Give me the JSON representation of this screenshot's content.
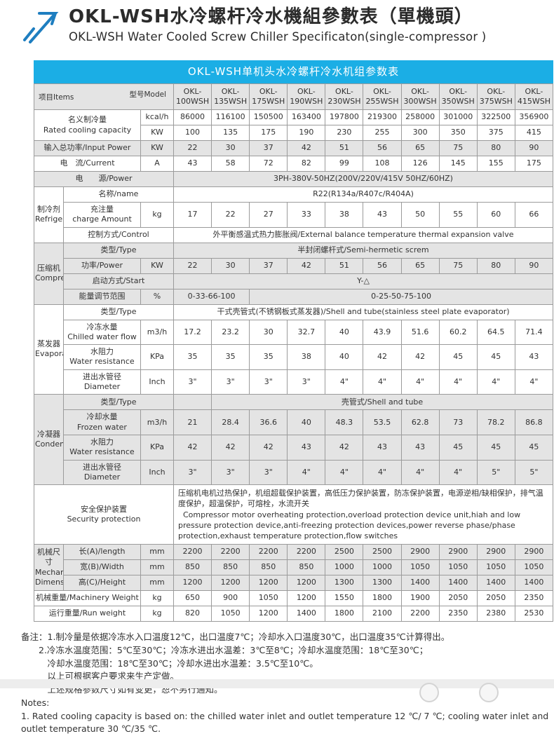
{
  "colors": {
    "accent": "#1baee5",
    "arrow_blue": "#1e7ec0",
    "row_gray": "#e4e4e4"
  },
  "page": {
    "title_zh": "OKL-WSH水冷螺杆冷水機組參數表（單機頭）",
    "title_en": "OKL-WSH Water Cooled Screw Chiller Specificaton(single-compressor )"
  },
  "table": {
    "caption": "OKL-WSH单机头水冷螺杆冷水机组参数表",
    "corner": {
      "items": "项目Items",
      "model": "型号Model"
    },
    "rows": [
      {
        "bg": "g",
        "cells": [
          {
            "type": "diag",
            "cs": 3
          },
          {
            "t": "OKL-\n100WSH",
            "n": "model-header"
          },
          {
            "t": "OKL-\n135WSH",
            "n": "model-header"
          },
          {
            "t": "OKL-\n175WSH",
            "n": "model-header"
          },
          {
            "t": "OKL-\n190WSH",
            "n": "model-header"
          },
          {
            "t": "OKL-\n230WSH",
            "n": "model-header"
          },
          {
            "t": "OKL-\n255WSH",
            "n": "model-header"
          },
          {
            "t": "OKL-\n300WSH",
            "n": "model-header"
          },
          {
            "t": "OKL-\n350WSH",
            "n": "model-header"
          },
          {
            "t": "OKL-\n375WSH",
            "n": "model-header"
          },
          {
            "t": "OKL-\n415WSH",
            "n": "model-header"
          }
        ]
      },
      {
        "cells": [
          {
            "t": "名义制冷量\nRated cooling capacity",
            "cs": 2,
            "rs": 2,
            "n": "row-label"
          },
          {
            "t": "kcal/h",
            "n": "unit"
          },
          {
            "t": "86000"
          },
          {
            "t": "116100"
          },
          {
            "t": "150500"
          },
          {
            "t": "163400"
          },
          {
            "t": "197800"
          },
          {
            "t": "219300"
          },
          {
            "t": "258000"
          },
          {
            "t": "301000"
          },
          {
            "t": "322500"
          },
          {
            "t": "356900"
          }
        ]
      },
      {
        "cells": [
          {
            "t": "KW",
            "n": "unit"
          },
          {
            "t": "100"
          },
          {
            "t": "135"
          },
          {
            "t": "175"
          },
          {
            "t": "190"
          },
          {
            "t": "230"
          },
          {
            "t": "255"
          },
          {
            "t": "300"
          },
          {
            "t": "350"
          },
          {
            "t": "375"
          },
          {
            "t": "415"
          }
        ]
      },
      {
        "bg": "g",
        "cells": [
          {
            "t": "输入总功率/Input Power",
            "cs": 2,
            "n": "row-label"
          },
          {
            "t": "KW",
            "n": "unit"
          },
          {
            "t": "22"
          },
          {
            "t": "30"
          },
          {
            "t": "37"
          },
          {
            "t": "42"
          },
          {
            "t": "51"
          },
          {
            "t": "56"
          },
          {
            "t": "65"
          },
          {
            "t": "75"
          },
          {
            "t": "80"
          },
          {
            "t": "90"
          }
        ]
      },
      {
        "cells": [
          {
            "t": "电　流/Current",
            "cs": 2,
            "n": "row-label"
          },
          {
            "t": "A",
            "n": "unit"
          },
          {
            "t": "43"
          },
          {
            "t": "58"
          },
          {
            "t": "72"
          },
          {
            "t": "82"
          },
          {
            "t": "99"
          },
          {
            "t": "108"
          },
          {
            "t": "126"
          },
          {
            "t": "145"
          },
          {
            "t": "155"
          },
          {
            "t": "175"
          }
        ]
      },
      {
        "bg": "g",
        "cells": [
          {
            "t": "电　　源/Power",
            "cs": 3,
            "n": "row-label"
          },
          {
            "t": "3PH-380V-50HZ(200V/220V/415V  50HZ/60HZ)",
            "cs": 10,
            "n": "merged-value"
          }
        ]
      },
      {
        "cells": [
          {
            "t": "制冷剂\nRefrigerant",
            "rs": 3,
            "n": "group-label"
          },
          {
            "t": "名称/name",
            "cs": 2,
            "n": "row-label"
          },
          {
            "t": "R22(R134a/R407c/R404A)",
            "cs": 10,
            "n": "merged-value"
          }
        ]
      },
      {
        "cells": [
          {
            "t": "充注量\ncharge Amount",
            "n": "row-label"
          },
          {
            "t": "kg",
            "n": "unit"
          },
          {
            "t": "17"
          },
          {
            "t": "22"
          },
          {
            "t": "27"
          },
          {
            "t": "33"
          },
          {
            "t": "38"
          },
          {
            "t": "43"
          },
          {
            "t": "50"
          },
          {
            "t": "55"
          },
          {
            "t": "60"
          },
          {
            "t": "66"
          }
        ]
      },
      {
        "cells": [
          {
            "t": "控制方式/Control",
            "cs": 2,
            "n": "row-label"
          },
          {
            "t": "外平衡感温式热力膨胀阀/External balance temperature thermal expansion valve",
            "cs": 10,
            "n": "merged-value"
          }
        ]
      },
      {
        "bg": "g",
        "cells": [
          {
            "t": "压缩机\nCompressor",
            "rs": 4,
            "n": "group-label"
          },
          {
            "t": "类型/Type",
            "cs": 2,
            "n": "row-label"
          },
          {
            "t": "半封闭螺杆式/Semi-hermetic screm",
            "cs": 10,
            "n": "merged-value"
          }
        ]
      },
      {
        "bg": "g",
        "cells": [
          {
            "t": "功率/Power",
            "n": "row-label"
          },
          {
            "t": "KW",
            "n": "unit"
          },
          {
            "t": "22"
          },
          {
            "t": "30"
          },
          {
            "t": "37"
          },
          {
            "t": "42"
          },
          {
            "t": "51"
          },
          {
            "t": "56"
          },
          {
            "t": "65"
          },
          {
            "t": "75"
          },
          {
            "t": "80"
          },
          {
            "t": "90"
          }
        ]
      },
      {
        "bg": "g",
        "cells": [
          {
            "t": "启动方式/Start",
            "cs": 2,
            "n": "row-label"
          },
          {
            "t": "Y-△",
            "cs": 10,
            "n": "merged-value"
          }
        ]
      },
      {
        "bg": "g",
        "cells": [
          {
            "t": "能量调节范围",
            "n": "row-label"
          },
          {
            "t": "%",
            "n": "unit"
          },
          {
            "t": "0-33-66-100",
            "cs": 2,
            "n": "merged-value"
          },
          {
            "t": "0-25-50-75-100",
            "cs": 8,
            "n": "merged-value"
          }
        ]
      },
      {
        "cells": [
          {
            "t": "蒸发器\nEvaporator",
            "rs": 4,
            "n": "group-label"
          },
          {
            "t": "类型/Type",
            "cs": 2,
            "n": "row-label"
          },
          {
            "t": "干式壳管式(不锈钢板式蒸发器)/Shell and tube(stainless steel plate evaporator)",
            "cs": 10,
            "n": "merged-value"
          }
        ]
      },
      {
        "cells": [
          {
            "t": "冷冻水量\nChilled water flow",
            "n": "row-label"
          },
          {
            "t": "m3/h",
            "n": "unit"
          },
          {
            "t": "17.2"
          },
          {
            "t": "23.2"
          },
          {
            "t": "30"
          },
          {
            "t": "32.7"
          },
          {
            "t": "40"
          },
          {
            "t": "43.9"
          },
          {
            "t": "51.6"
          },
          {
            "t": "60.2"
          },
          {
            "t": "64.5"
          },
          {
            "t": "71.4"
          }
        ]
      },
      {
        "cells": [
          {
            "t": "水阻力\nWater resistance",
            "n": "row-label"
          },
          {
            "t": "KPa",
            "n": "unit"
          },
          {
            "t": "35"
          },
          {
            "t": "35"
          },
          {
            "t": "35"
          },
          {
            "t": "38"
          },
          {
            "t": "40"
          },
          {
            "t": "42"
          },
          {
            "t": "42"
          },
          {
            "t": "45"
          },
          {
            "t": "45"
          },
          {
            "t": "43"
          }
        ]
      },
      {
        "cells": [
          {
            "t": "进出水管径\nDiameter",
            "n": "row-label"
          },
          {
            "t": "Inch",
            "n": "unit"
          },
          {
            "t": "3\""
          },
          {
            "t": "3\""
          },
          {
            "t": "3\""
          },
          {
            "t": "3\""
          },
          {
            "t": "4\""
          },
          {
            "t": "4\""
          },
          {
            "t": "4\""
          },
          {
            "t": "4\""
          },
          {
            "t": "4\""
          },
          {
            "t": "4\""
          }
        ]
      },
      {
        "bg": "g",
        "cells": [
          {
            "t": "冷凝器\nCondenser",
            "rs": 4,
            "n": "group-label"
          },
          {
            "t": "类型/Type",
            "cs": 2,
            "n": "row-label"
          },
          {
            "t": "",
            "n": "empty-cell"
          },
          {
            "t": "壳管式/Shell and tube",
            "cs": 9,
            "n": "merged-value"
          }
        ]
      },
      {
        "bg": "g",
        "cells": [
          {
            "t": "冷却水量\nFrozen water",
            "n": "row-label"
          },
          {
            "t": "m3/h",
            "n": "unit"
          },
          {
            "t": "21"
          },
          {
            "t": "28.4"
          },
          {
            "t": "36.6"
          },
          {
            "t": "40"
          },
          {
            "t": "48.3"
          },
          {
            "t": "53.5"
          },
          {
            "t": "62.8"
          },
          {
            "t": "73"
          },
          {
            "t": "78.2"
          },
          {
            "t": "86.8"
          }
        ]
      },
      {
        "bg": "g",
        "cells": [
          {
            "t": "水阻力\nWater resistance",
            "n": "row-label"
          },
          {
            "t": "KPa",
            "n": "unit"
          },
          {
            "t": "42"
          },
          {
            "t": "42"
          },
          {
            "t": "42"
          },
          {
            "t": "43"
          },
          {
            "t": "42"
          },
          {
            "t": "43"
          },
          {
            "t": "43"
          },
          {
            "t": "45"
          },
          {
            "t": "45"
          },
          {
            "t": "45"
          }
        ]
      },
      {
        "bg": "g",
        "cells": [
          {
            "t": "进出水管径\nDiameter",
            "n": "row-label"
          },
          {
            "t": "Inch",
            "n": "unit"
          },
          {
            "t": "3\""
          },
          {
            "t": "3\""
          },
          {
            "t": "3\""
          },
          {
            "t": "4\""
          },
          {
            "t": "4\""
          },
          {
            "t": "4\""
          },
          {
            "t": "4\""
          },
          {
            "t": "4\""
          },
          {
            "t": "5\""
          },
          {
            "t": "5\""
          }
        ]
      },
      {
        "cells": [
          {
            "t": "安全保护装置\nSecurity protection",
            "cs": 3,
            "n": "row-label"
          },
          {
            "t": "压缩机电机过热保护，机组超载保护装置，高低压力保护装置，防冻保护装置，电源逆相/缺相保护，排气温度保护，超温保护，可熔栓，水流开关\n  Compressor motor overheating protection,overload protection device unit,hiah and low pressure protection device,anti-freezing protection devices,power reverse phase/phase protection,exhaust temperature protection,flow switches",
            "cs": 10,
            "cls": "left",
            "n": "security-text"
          }
        ]
      },
      {
        "bg": "g",
        "cells": [
          {
            "t": "机械尺寸\nMechanical\nDimensions",
            "rs": 3,
            "n": "group-label"
          },
          {
            "t": "长(A)/length",
            "n": "row-label"
          },
          {
            "t": "mm",
            "n": "unit"
          },
          {
            "t": "2200"
          },
          {
            "t": "2200"
          },
          {
            "t": "2200"
          },
          {
            "t": "2200"
          },
          {
            "t": "2500"
          },
          {
            "t": "2500"
          },
          {
            "t": "2900"
          },
          {
            "t": "2900"
          },
          {
            "t": "2900"
          },
          {
            "t": "2900"
          }
        ]
      },
      {
        "bg": "g",
        "cells": [
          {
            "t": "宽(B)/Width",
            "n": "row-label"
          },
          {
            "t": "mm",
            "n": "unit"
          },
          {
            "t": "850"
          },
          {
            "t": "850"
          },
          {
            "t": "850"
          },
          {
            "t": "850"
          },
          {
            "t": "1000"
          },
          {
            "t": "1000"
          },
          {
            "t": "1050"
          },
          {
            "t": "1050"
          },
          {
            "t": "1050"
          },
          {
            "t": "1050"
          }
        ]
      },
      {
        "bg": "g",
        "cells": [
          {
            "t": "高(C)/Height",
            "n": "row-label"
          },
          {
            "t": "mm",
            "n": "unit"
          },
          {
            "t": "1200"
          },
          {
            "t": "1200"
          },
          {
            "t": "1200"
          },
          {
            "t": "1200"
          },
          {
            "t": "1300"
          },
          {
            "t": "1300"
          },
          {
            "t": "1400"
          },
          {
            "t": "1400"
          },
          {
            "t": "1400"
          },
          {
            "t": "1400"
          }
        ]
      },
      {
        "cells": [
          {
            "t": "机械重量/Machinery Weight",
            "cs": 2,
            "n": "row-label"
          },
          {
            "t": "kg",
            "n": "unit"
          },
          {
            "t": "650"
          },
          {
            "t": "900"
          },
          {
            "t": "1050"
          },
          {
            "t": "1200"
          },
          {
            "t": "1550"
          },
          {
            "t": "1800"
          },
          {
            "t": "1900"
          },
          {
            "t": "2050"
          },
          {
            "t": "2050"
          },
          {
            "t": "2350"
          }
        ]
      },
      {
        "cells": [
          {
            "t": "运行重量/Run weight",
            "cs": 2,
            "n": "row-label"
          },
          {
            "t": "kg",
            "n": "unit"
          },
          {
            "t": "820"
          },
          {
            "t": "1050"
          },
          {
            "t": "1200"
          },
          {
            "t": "1400"
          },
          {
            "t": "1800"
          },
          {
            "t": "2100"
          },
          {
            "t": "2200"
          },
          {
            "t": "2350"
          },
          {
            "t": "2380"
          },
          {
            "t": "2530"
          }
        ]
      }
    ]
  },
  "notes": {
    "lines": [
      "备注：1.制冷量是依据冷冻水入口温度12℃，出口温度7℃；冷却水入口温度30℃，出口温度35℃计算得出。",
      "　　2.冷冻水温度范围：5℃至30℃；冷冻水进出水温差：3℃至8℃；冷却水温度范围：18℃至30℃；",
      "　　　冷却水温度范围：18℃至30℃；冷却水进出水温差：3.5℃至10℃。",
      "　　　以上可根据客户要求来生产定做。",
      "　　　上述规格参数尺寸如有变更，恕不另行通知。",
      "Notes:",
      "1. Rated cooling capacity is based on: the chilled water inlet and outlet temperature 12 ℃/ 7 ℃; cooling water inlet and outlet temperature 30 ℃/35 ℃."
    ]
  }
}
